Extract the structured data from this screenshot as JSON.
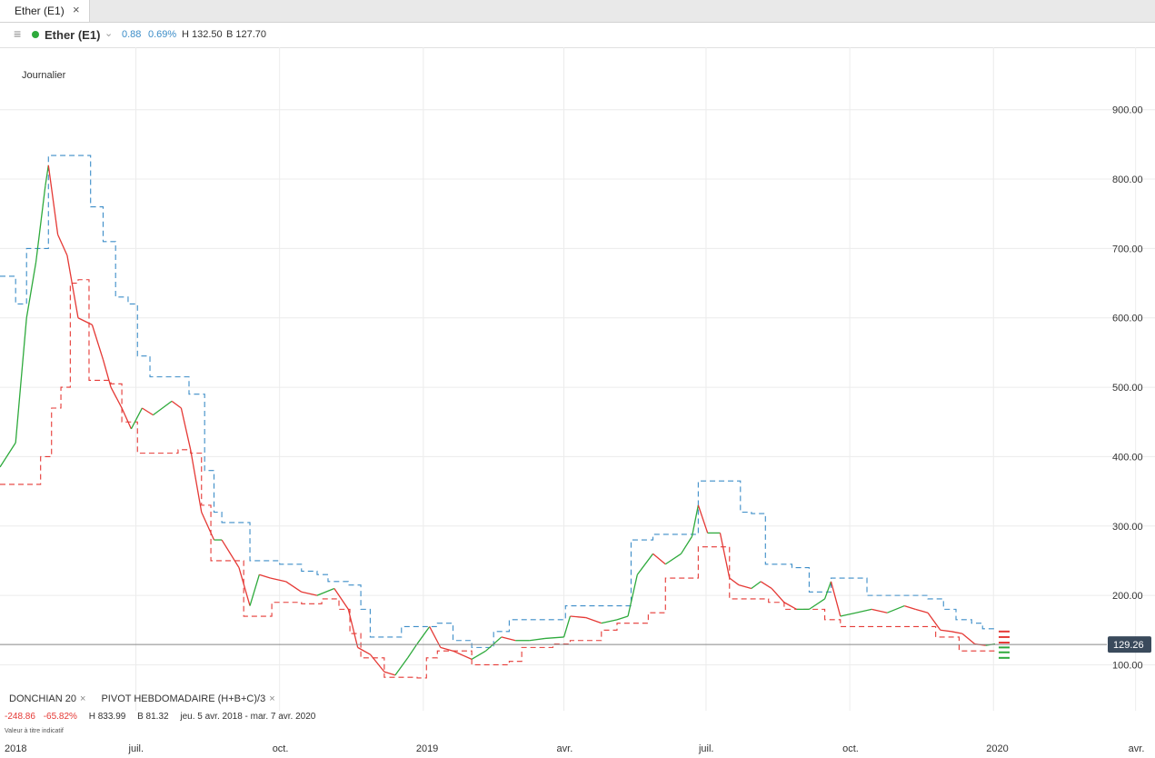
{
  "tab": {
    "label": "Ether (E1)",
    "close_icon": "×"
  },
  "header": {
    "menu_icon": "≡",
    "status_color": "#2eaa3c",
    "name": "Ether (E1)",
    "chevron": "⌄",
    "change": "0.88",
    "change_pct": "0.69%",
    "high": "H 132.50",
    "low": "B 127.70"
  },
  "chart": {
    "timeframe": "Journalier",
    "current_price_label": "129.26",
    "legend": {
      "indicator1": "DONCHIAN  20",
      "indicator2": "PIVOT  HEBDOMADAIRE  (H+B+C)/3",
      "close_icon": "×"
    },
    "stats": {
      "change": "-248.86",
      "change_pct": "-65.82%",
      "high": "H 833.99",
      "low": "B 81.32",
      "range": "jeu. 5 avr. 2018 - mar. 7 avr. 2020"
    },
    "note": "Valeur à titre indicatif"
  },
  "chart_data": {
    "type": "line",
    "y_ticks": [
      "100.00",
      "200.00",
      "300.00",
      "400.00",
      "500.00",
      "600.00",
      "700.00",
      "800.00",
      "900.00"
    ],
    "y_range": [
      60,
      990
    ],
    "x_labels": [
      {
        "text": "2018",
        "date": "2018-04-05"
      },
      {
        "text": "juil.",
        "date": "2018-07-01"
      },
      {
        "text": "oct.",
        "date": "2018-10-01"
      },
      {
        "text": "2019",
        "date": "2019-01-01"
      },
      {
        "text": "avr.",
        "date": "2019-04-01"
      },
      {
        "text": "juil.",
        "date": "2019-07-01"
      },
      {
        "text": "oct.",
        "date": "2019-10-01"
      },
      {
        "text": "2020",
        "date": "2020-01-01"
      },
      {
        "text": "avr.",
        "date": "2020-04-01"
      }
    ],
    "x_range": [
      "2018-04-05",
      "2020-04-07"
    ],
    "colors": {
      "up": "#2eaa3c",
      "down": "#e53935",
      "donchian_upper": "#3c8dc8",
      "donchian_lower": "#e53935",
      "grid": "#ececec",
      "price_line": "#888888",
      "price_label_bg": "#3a4a5c"
    },
    "current_price": 129.26,
    "series": [
      {
        "key": "close",
        "points": [
          [
            "2018-04-05",
            385
          ],
          [
            "2018-04-15",
            420
          ],
          [
            "2018-04-22",
            600
          ],
          [
            "2018-04-28",
            680
          ],
          [
            "2018-05-04",
            790
          ],
          [
            "2018-05-06",
            820
          ],
          [
            "2018-05-12",
            720
          ],
          [
            "2018-05-18",
            690
          ],
          [
            "2018-05-25",
            600
          ],
          [
            "2018-06-03",
            590
          ],
          [
            "2018-06-10",
            540
          ],
          [
            "2018-06-15",
            500
          ],
          [
            "2018-06-22",
            470
          ],
          [
            "2018-06-28",
            440
          ],
          [
            "2018-07-05",
            470
          ],
          [
            "2018-07-12",
            460
          ],
          [
            "2018-07-24",
            480
          ],
          [
            "2018-07-30",
            470
          ],
          [
            "2018-08-05",
            410
          ],
          [
            "2018-08-12",
            320
          ],
          [
            "2018-08-20",
            280
          ],
          [
            "2018-08-25",
            280
          ],
          [
            "2018-09-05",
            240
          ],
          [
            "2018-09-12",
            185
          ],
          [
            "2018-09-18",
            230
          ],
          [
            "2018-09-25",
            225
          ],
          [
            "2018-10-05",
            220
          ],
          [
            "2018-10-15",
            205
          ],
          [
            "2018-10-25",
            200
          ],
          [
            "2018-11-05",
            210
          ],
          [
            "2018-11-14",
            180
          ],
          [
            "2018-11-20",
            125
          ],
          [
            "2018-11-28",
            115
          ],
          [
            "2018-12-07",
            90
          ],
          [
            "2018-12-14",
            85
          ],
          [
            "2018-12-22",
            110
          ],
          [
            "2018-12-28",
            130
          ],
          [
            "2019-01-05",
            155
          ],
          [
            "2019-01-12",
            125
          ],
          [
            "2019-01-20",
            120
          ],
          [
            "2019-02-01",
            108
          ],
          [
            "2019-02-10",
            120
          ],
          [
            "2019-02-20",
            140
          ],
          [
            "2019-03-01",
            135
          ],
          [
            "2019-03-10",
            135
          ],
          [
            "2019-03-20",
            138
          ],
          [
            "2019-04-01",
            140
          ],
          [
            "2019-04-05",
            170
          ],
          [
            "2019-04-15",
            168
          ],
          [
            "2019-04-25",
            160
          ],
          [
            "2019-05-05",
            165
          ],
          [
            "2019-05-12",
            170
          ],
          [
            "2019-05-18",
            230
          ],
          [
            "2019-05-28",
            260
          ],
          [
            "2019-06-05",
            245
          ],
          [
            "2019-06-15",
            260
          ],
          [
            "2019-06-22",
            285
          ],
          [
            "2019-06-26",
            330
          ],
          [
            "2019-07-02",
            290
          ],
          [
            "2019-07-10",
            290
          ],
          [
            "2019-07-16",
            225
          ],
          [
            "2019-07-22",
            215
          ],
          [
            "2019-07-30",
            210
          ],
          [
            "2019-08-05",
            220
          ],
          [
            "2019-08-12",
            210
          ],
          [
            "2019-08-20",
            190
          ],
          [
            "2019-08-28",
            180
          ],
          [
            "2019-09-05",
            180
          ],
          [
            "2019-09-15",
            195
          ],
          [
            "2019-09-19",
            220
          ],
          [
            "2019-09-25",
            170
          ],
          [
            "2019-10-05",
            175
          ],
          [
            "2019-10-15",
            180
          ],
          [
            "2019-10-25",
            175
          ],
          [
            "2019-11-05",
            185
          ],
          [
            "2019-11-12",
            180
          ],
          [
            "2019-11-20",
            175
          ],
          [
            "2019-11-28",
            150
          ],
          [
            "2019-12-05",
            148
          ],
          [
            "2019-12-12",
            145
          ],
          [
            "2019-12-20",
            130
          ],
          [
            "2019-12-27",
            128
          ],
          [
            "2020-01-02",
            130
          ]
        ]
      },
      {
        "key": "donchian_upper",
        "points": [
          [
            "2018-04-05",
            660
          ],
          [
            "2018-04-15",
            620
          ],
          [
            "2018-04-22",
            700
          ],
          [
            "2018-05-06",
            834
          ],
          [
            "2018-05-26",
            834
          ],
          [
            "2018-06-02",
            760
          ],
          [
            "2018-06-10",
            710
          ],
          [
            "2018-06-18",
            630
          ],
          [
            "2018-06-26",
            620
          ],
          [
            "2018-07-02",
            545
          ],
          [
            "2018-07-10",
            515
          ],
          [
            "2018-07-26",
            515
          ],
          [
            "2018-08-04",
            490
          ],
          [
            "2018-08-14",
            380
          ],
          [
            "2018-08-20",
            320
          ],
          [
            "2018-08-25",
            305
          ],
          [
            "2018-09-05",
            305
          ],
          [
            "2018-09-12",
            250
          ],
          [
            "2018-10-01",
            245
          ],
          [
            "2018-10-15",
            235
          ],
          [
            "2018-10-25",
            230
          ],
          [
            "2018-11-01",
            220
          ],
          [
            "2018-11-14",
            215
          ],
          [
            "2018-11-22",
            180
          ],
          [
            "2018-11-28",
            140
          ],
          [
            "2018-12-15",
            140
          ],
          [
            "2018-12-18",
            155
          ],
          [
            "2019-01-10",
            160
          ],
          [
            "2019-01-20",
            135
          ],
          [
            "2019-02-01",
            125
          ],
          [
            "2019-02-15",
            148
          ],
          [
            "2019-02-25",
            165
          ],
          [
            "2019-03-25",
            165
          ],
          [
            "2019-04-02",
            185
          ],
          [
            "2019-05-04",
            185
          ],
          [
            "2019-05-14",
            280
          ],
          [
            "2019-05-28",
            288
          ],
          [
            "2019-06-22",
            288
          ],
          [
            "2019-06-26",
            365
          ],
          [
            "2019-07-15",
            365
          ],
          [
            "2019-07-23",
            320
          ],
          [
            "2019-07-30",
            318
          ],
          [
            "2019-08-08",
            245
          ],
          [
            "2019-08-25",
            240
          ],
          [
            "2019-09-05",
            205
          ],
          [
            "2019-09-19",
            225
          ],
          [
            "2019-10-08",
            225
          ],
          [
            "2019-10-12",
            200
          ],
          [
            "2019-11-20",
            195
          ],
          [
            "2019-11-30",
            180
          ],
          [
            "2019-12-08",
            165
          ],
          [
            "2019-12-18",
            160
          ],
          [
            "2019-12-25",
            152
          ],
          [
            "2020-01-02",
            150
          ]
        ]
      },
      {
        "key": "donchian_lower",
        "points": [
          [
            "2018-04-05",
            360
          ],
          [
            "2018-04-20",
            360
          ],
          [
            "2018-05-01",
            400
          ],
          [
            "2018-05-08",
            470
          ],
          [
            "2018-05-14",
            500
          ],
          [
            "2018-05-20",
            650
          ],
          [
            "2018-05-25",
            655
          ],
          [
            "2018-06-01",
            510
          ],
          [
            "2018-06-15",
            505
          ],
          [
            "2018-06-22",
            450
          ],
          [
            "2018-07-02",
            405
          ],
          [
            "2018-07-22",
            405
          ],
          [
            "2018-07-28",
            410
          ],
          [
            "2018-08-05",
            405
          ],
          [
            "2018-08-12",
            330
          ],
          [
            "2018-08-18",
            250
          ],
          [
            "2018-08-31",
            250
          ],
          [
            "2018-09-08",
            170
          ],
          [
            "2018-09-20",
            170
          ],
          [
            "2018-09-26",
            190
          ],
          [
            "2018-10-15",
            188
          ],
          [
            "2018-10-28",
            195
          ],
          [
            "2018-11-08",
            180
          ],
          [
            "2018-11-15",
            145
          ],
          [
            "2018-11-22",
            110
          ],
          [
            "2018-12-07",
            82
          ],
          [
            "2018-12-28",
            81
          ],
          [
            "2019-01-03",
            110
          ],
          [
            "2019-01-10",
            120
          ],
          [
            "2019-02-01",
            100
          ],
          [
            "2019-02-25",
            105
          ],
          [
            "2019-03-05",
            125
          ],
          [
            "2019-03-25",
            130
          ],
          [
            "2019-04-05",
            135
          ],
          [
            "2019-04-25",
            150
          ],
          [
            "2019-05-05",
            160
          ],
          [
            "2019-05-25",
            175
          ],
          [
            "2019-06-05",
            225
          ],
          [
            "2019-06-20",
            225
          ],
          [
            "2019-06-26",
            270
          ],
          [
            "2019-07-12",
            270
          ],
          [
            "2019-07-16",
            195
          ],
          [
            "2019-08-10",
            190
          ],
          [
            "2019-08-20",
            180
          ],
          [
            "2019-09-15",
            165
          ],
          [
            "2019-09-25",
            155
          ],
          [
            "2019-10-20",
            155
          ],
          [
            "2019-11-10",
            155
          ],
          [
            "2019-11-25",
            140
          ],
          [
            "2019-12-10",
            120
          ],
          [
            "2020-01-02",
            118
          ]
        ]
      }
    ],
    "pivot_marks": [
      {
        "value": 148,
        "color": "#e53935"
      },
      {
        "value": 140,
        "color": "#e53935"
      },
      {
        "value": 132,
        "color": "#e53935"
      },
      {
        "value": 125,
        "color": "#2eaa3c"
      },
      {
        "value": 118,
        "color": "#2eaa3c"
      },
      {
        "value": 110,
        "color": "#2eaa3c"
      }
    ]
  }
}
